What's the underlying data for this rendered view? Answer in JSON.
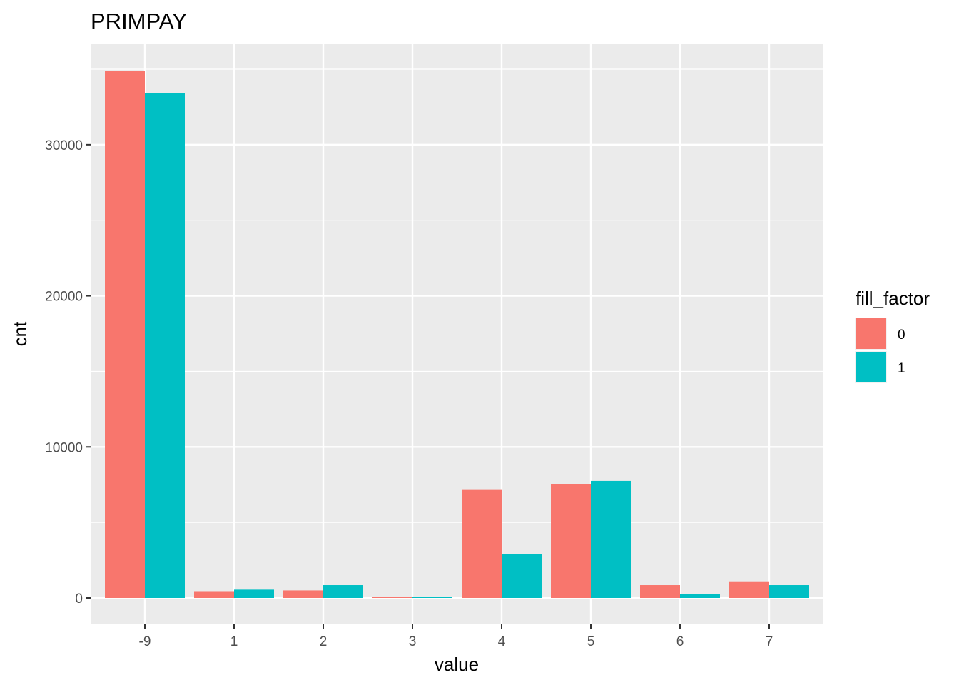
{
  "chart_data": {
    "type": "bar",
    "title": "PRIMPAY",
    "xlabel": "value",
    "ylabel": "cnt",
    "categories": [
      "-9",
      "1",
      "2",
      "3",
      "4",
      "5",
      "6",
      "7"
    ],
    "series": [
      {
        "name": "0",
        "color": "#F8766D",
        "values": [
          34900,
          450,
          500,
          80,
          7150,
          7550,
          850,
          1100
        ]
      },
      {
        "name": "1",
        "color": "#00BFC4",
        "values": [
          33400,
          550,
          850,
          80,
          2900,
          7750,
          250,
          850
        ]
      }
    ],
    "yticks": [
      0,
      10000,
      20000,
      30000
    ],
    "ylim": [
      -1747,
      36700
    ],
    "legend": {
      "title": "fill_factor",
      "position": "right"
    },
    "grid": true
  }
}
